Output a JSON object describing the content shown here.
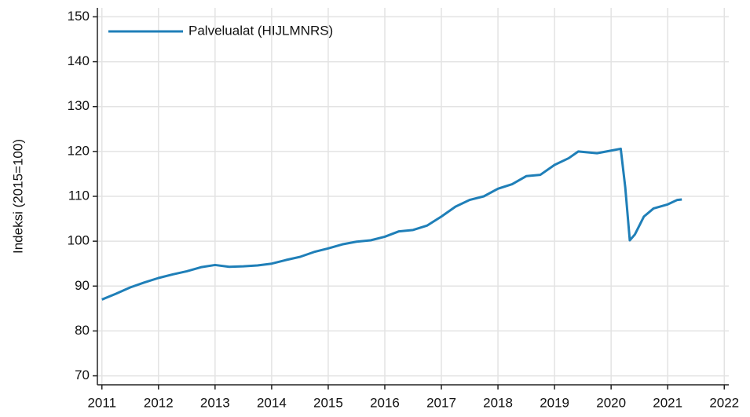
{
  "chart_data": {
    "type": "line",
    "ylabel": "Indeksi (2015=100)",
    "x": [
      2011.0,
      2011.25,
      2011.5,
      2011.75,
      2012.0,
      2012.25,
      2012.5,
      2012.75,
      2013.0,
      2013.25,
      2013.5,
      2013.75,
      2014.0,
      2014.25,
      2014.5,
      2014.75,
      2015.0,
      2015.25,
      2015.5,
      2015.75,
      2016.0,
      2016.25,
      2016.5,
      2016.75,
      2017.0,
      2017.25,
      2017.5,
      2017.75,
      2018.0,
      2018.25,
      2018.5,
      2018.75,
      2019.0,
      2019.25,
      2019.42,
      2019.75,
      2020.0,
      2020.17,
      2020.25,
      2020.33,
      2020.42,
      2020.58,
      2020.75,
      2021.0,
      2021.17,
      2021.25
    ],
    "series": [
      {
        "name": "Palvelualat (HIJLMNRS)",
        "color": "#1f7fb8",
        "values": [
          87.0,
          88.3,
          89.7,
          90.8,
          91.8,
          92.6,
          93.3,
          94.2,
          94.7,
          94.3,
          94.4,
          94.6,
          95.0,
          95.8,
          96.5,
          97.6,
          98.4,
          99.3,
          99.9,
          100.2,
          101.0,
          102.2,
          102.5,
          103.5,
          105.5,
          107.7,
          109.2,
          110.0,
          111.7,
          112.7,
          114.5,
          114.8,
          117.0,
          118.5,
          120.0,
          119.6,
          120.2,
          120.6,
          112.0,
          100.2,
          101.5,
          105.5,
          107.3,
          108.2,
          109.2,
          109.3
        ]
      }
    ],
    "xlim": [
      2010.92,
      2022.08
    ],
    "xticks": [
      2011,
      2012,
      2013,
      2014,
      2015,
      2016,
      2017,
      2018,
      2019,
      2020,
      2021,
      2022
    ],
    "ylim": [
      68,
      152
    ],
    "yticks": [
      70,
      80,
      90,
      100,
      110,
      120,
      130,
      140,
      150
    ],
    "grid": true,
    "legend": "upper-left"
  }
}
